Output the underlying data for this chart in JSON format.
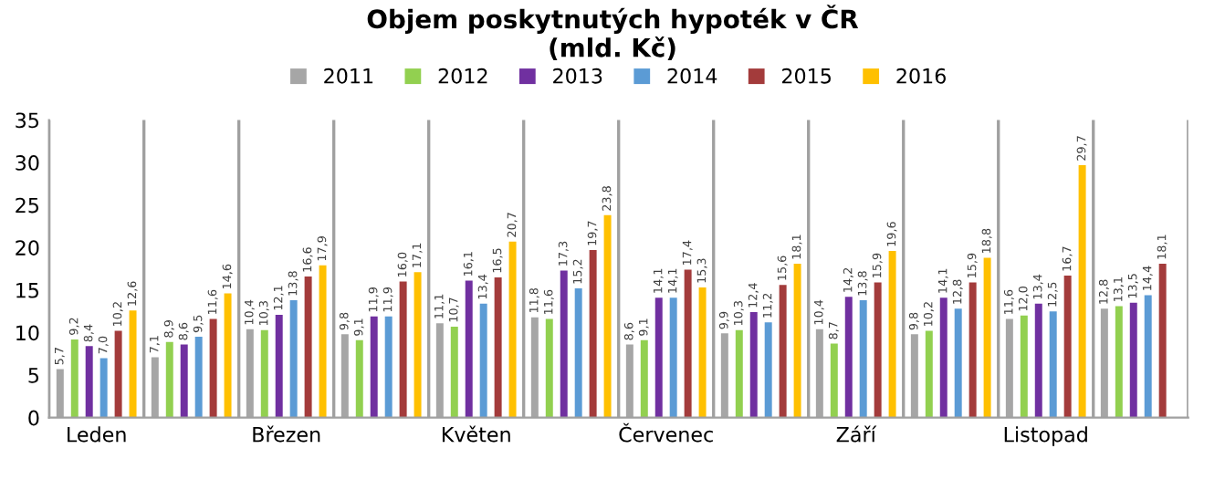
{
  "chart_data": {
    "type": "bar",
    "title": "Objem poskytnutých hypoték v ČR\n(mld. Kč)",
    "categories": [
      "Leden",
      null,
      "Březen",
      null,
      "Květen",
      null,
      "Červenec",
      null,
      "Září",
      null,
      "Listopad",
      null
    ],
    "series": [
      {
        "name": "2011",
        "color": "#a6a6a6",
        "values": [
          5.7,
          7.1,
          10.4,
          9.8,
          11.1,
          11.8,
          8.6,
          9.9,
          10.4,
          9.8,
          11.6,
          12.8
        ],
        "value_labels": [
          "5,7",
          "7,1",
          "10,4",
          "9,8",
          "11,1",
          "11,8",
          "8,6",
          "9,9",
          "10,4",
          "9,8",
          "11,6",
          "12,8"
        ]
      },
      {
        "name": "2012",
        "color": "#92d050",
        "values": [
          9.2,
          8.9,
          10.3,
          9.1,
          10.7,
          11.6,
          9.1,
          10.3,
          8.7,
          10.2,
          12.0,
          13.1
        ],
        "value_labels": [
          "9,2",
          "8,9",
          "10,3",
          "9,1",
          "10,7",
          "11,6",
          "9,1",
          "10,3",
          "8,7",
          "10,2",
          "12,0",
          "13,1"
        ]
      },
      {
        "name": "2013",
        "color": "#7030a0",
        "values": [
          8.4,
          8.6,
          12.1,
          11.9,
          16.1,
          17.3,
          14.1,
          12.4,
          14.2,
          14.1,
          13.4,
          13.5
        ],
        "value_labels": [
          "8,4",
          "8,6",
          "12,1",
          "11,9",
          "16,1",
          "17,3",
          "14,1",
          "12,4",
          "14,2",
          "14,1",
          "13,4",
          "13,5"
        ]
      },
      {
        "name": "2014",
        "color": "#5b9bd5",
        "values": [
          7.0,
          9.5,
          13.8,
          11.9,
          13.4,
          15.2,
          14.1,
          11.2,
          13.8,
          12.8,
          12.5,
          14.4
        ],
        "value_labels": [
          "7,0",
          "9,5",
          "13,8",
          "11,9",
          "13,4",
          "15,2",
          "14,1",
          "11,2",
          "13,8",
          "12,8",
          "12,5",
          "14,4"
        ]
      },
      {
        "name": "2015",
        "color": "#a33b3b",
        "values": [
          10.2,
          11.6,
          16.6,
          16.0,
          16.5,
          19.7,
          17.4,
          15.6,
          15.9,
          15.9,
          16.7,
          18.1
        ],
        "value_labels": [
          "10,2",
          "11,6",
          "16,6",
          "16,0",
          "16,5",
          "19,7",
          "17,4",
          "15,6",
          "15,9",
          "15,9",
          "16,7",
          "18,1"
        ]
      },
      {
        "name": "2016",
        "color": "#ffc000",
        "values": [
          12.6,
          14.6,
          17.9,
          17.1,
          20.7,
          23.8,
          15.3,
          18.1,
          19.6,
          18.8,
          29.7,
          null
        ],
        "value_labels": [
          "12,6",
          "14,6",
          "17,9",
          "17,1",
          "20,7",
          "23,8",
          "15,3",
          "18,1",
          "19,6",
          "18,8",
          "29,7",
          null
        ]
      }
    ],
    "ylim": [
      0,
      35
    ],
    "yticks": [
      0,
      5,
      10,
      15,
      20,
      25,
      30,
      35
    ],
    "grid": "x",
    "legend": "top"
  }
}
